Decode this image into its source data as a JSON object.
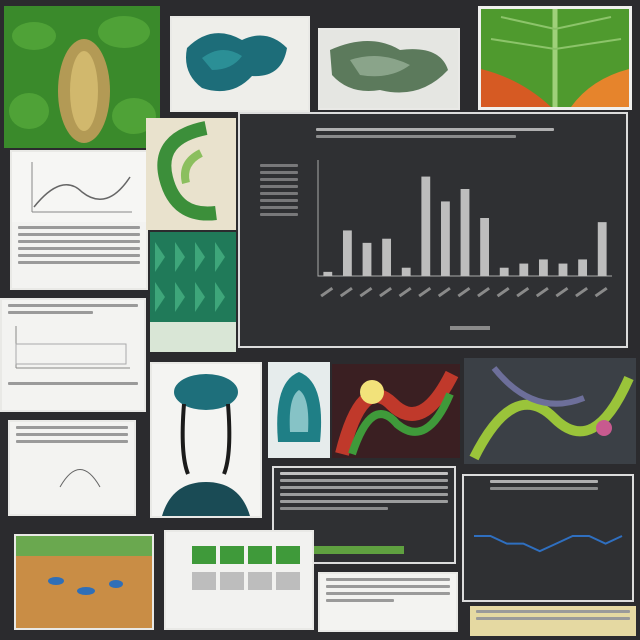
{
  "collage": {
    "tiles": [
      {
        "name": "leaf-macro-top-left",
        "kind": "photo"
      },
      {
        "name": "teal-sculpture",
        "kind": "photo"
      },
      {
        "name": "green-foliage-print",
        "kind": "photo"
      },
      {
        "name": "orange-green-leaf",
        "kind": "photo"
      },
      {
        "name": "line-chart-printout",
        "kind": "document"
      },
      {
        "name": "spiral-green-illustration",
        "kind": "photo"
      },
      {
        "name": "green-tile-pattern",
        "kind": "photo"
      },
      {
        "name": "featured-dark-bar-chart",
        "kind": "chart"
      },
      {
        "name": "report-sheet-left",
        "kind": "document"
      },
      {
        "name": "data-sheet-left-bottom",
        "kind": "document"
      },
      {
        "name": "teal-head-silhouette",
        "kind": "photo"
      },
      {
        "name": "teal-abstract-figure",
        "kind": "photo"
      },
      {
        "name": "red-green-abstract",
        "kind": "photo"
      },
      {
        "name": "green-curves-photo",
        "kind": "photo"
      },
      {
        "name": "dark-text-screen",
        "kind": "document"
      },
      {
        "name": "dark-line-chart",
        "kind": "chart"
      },
      {
        "name": "orange-landscape",
        "kind": "photo"
      },
      {
        "name": "spreadsheet-grid",
        "kind": "document"
      },
      {
        "name": "text-strip-bottom",
        "kind": "document"
      }
    ]
  },
  "colors": {
    "background": "#2b2b2e",
    "leaf_green": "#3e8a2a",
    "teal": "#1f6f78",
    "chart_bar": "#bdbdbd",
    "chart_bg": "#333436",
    "line_blue": "#2f6fc0"
  },
  "featured_chart": {
    "chart_data": {
      "type": "bar",
      "title": "",
      "xlabel": "",
      "ylabel": "",
      "categories": [
        "",
        "",
        "",
        "",
        "",
        "",
        "",
        "",
        "",
        "",
        "",
        "",
        "",
        "",
        ""
      ],
      "values": [
        1,
        11,
        8,
        9,
        2,
        24,
        18,
        21,
        14,
        2,
        3,
        4,
        3,
        4,
        13
      ],
      "ylim": [
        0,
        28
      ]
    }
  },
  "small_line_chart": {
    "chart_data": {
      "type": "line",
      "title": "",
      "x": [
        1,
        2,
        3,
        4,
        5,
        6,
        7,
        8,
        9,
        10
      ],
      "series": [
        {
          "values": [
            5,
            5,
            4,
            4,
            3,
            4,
            5,
            5,
            4,
            5
          ]
        }
      ],
      "ylim": [
        0,
        10
      ]
    }
  }
}
